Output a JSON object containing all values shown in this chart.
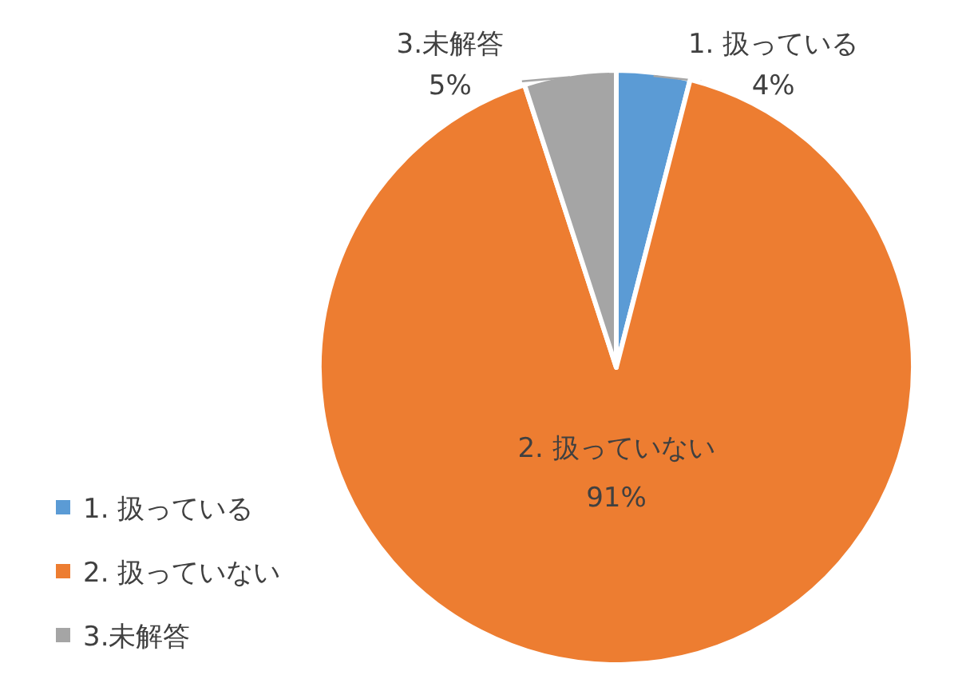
{
  "chart_data": {
    "type": "pie",
    "categories": [
      "1. 扱っている",
      "2. 扱っていない",
      "3.未解答"
    ],
    "values": [
      4,
      91,
      5
    ],
    "colors": [
      "#5b9bd5",
      "#ed7d31",
      "#a5a5a5"
    ],
    "value_labels": [
      "4%",
      "91%",
      "5%"
    ],
    "legend": "left"
  }
}
